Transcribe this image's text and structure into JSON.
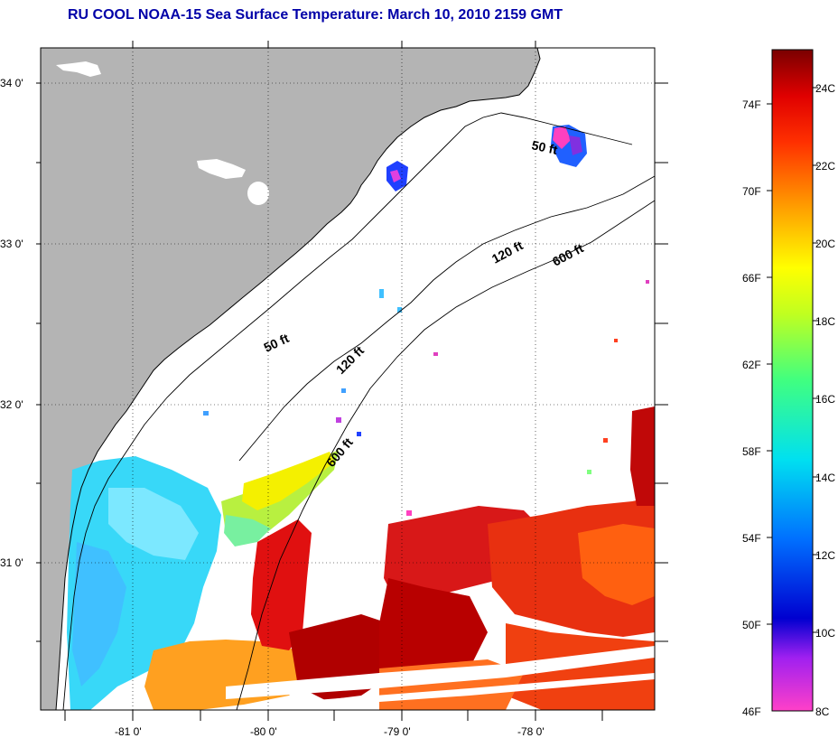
{
  "title": "RU COOL  NOAA-15  Sea Surface Temperature:  March 10, 2010 2159 GMT",
  "lat_ticks": [
    "34 0'",
    "33 0'",
    "32 0'",
    "31 0'"
  ],
  "lon_ticks": [
    "-81 0'",
    "-80 0'",
    "-79 0'",
    "-78 0'"
  ],
  "contours": [
    {
      "label": "50 ft",
      "id": "c50a"
    },
    {
      "label": "50 ft",
      "id": "c50b"
    },
    {
      "label": "120 ft",
      "id": "c120a"
    },
    {
      "label": "120 ft",
      "id": "c120b"
    },
    {
      "label": "600 ft",
      "id": "c600a"
    },
    {
      "label": "600 ft",
      "id": "c600b"
    }
  ],
  "colorbar": {
    "fahrenheit": [
      "74F",
      "70F",
      "66F",
      "62F",
      "58F",
      "54F",
      "50F",
      "46F"
    ],
    "celsius": [
      "24C",
      "22C",
      "20C",
      "18C",
      "16C",
      "14C",
      "12C",
      "10C",
      "8C"
    ]
  },
  "colors": {
    "land": "#b4b4b4",
    "title": "#0000a8"
  }
}
